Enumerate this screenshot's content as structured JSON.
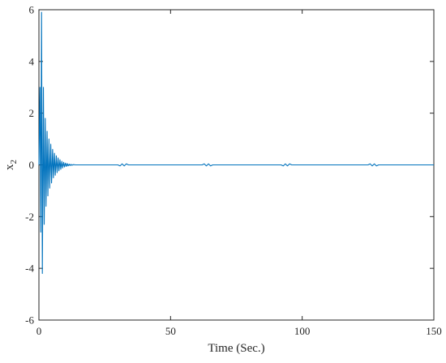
{
  "chart_data": {
    "type": "line",
    "title": "",
    "xlabel": "Time (Sec.)",
    "ylabel": "x",
    "ylabel_subscript": "2",
    "xlim": [
      0,
      150
    ],
    "ylim": [
      -6,
      6
    ],
    "xticks": [
      0,
      50,
      100,
      150
    ],
    "yticks": [
      -6,
      -4,
      -2,
      0,
      2,
      4,
      6
    ],
    "xtick_labels": [
      "0",
      "50",
      "100",
      "150"
    ],
    "ytick_labels": [
      "-6",
      "-4",
      "-2",
      "0",
      "2",
      "4",
      "6"
    ],
    "grid": false,
    "box": true,
    "line_color": "#0072BD",
    "series": [
      {
        "x": [
          0,
          0.4,
          0.7,
          1.0,
          1.3,
          1.7,
          2.0,
          2.4,
          2.7,
          3.1,
          3.4,
          3.8,
          4.1,
          4.5,
          4.8,
          5.2,
          5.5,
          5.9,
          6.2,
          6.6,
          6.9,
          7.3,
          7.6,
          8.0,
          8.3,
          8.7,
          9.0,
          9.4,
          9.7,
          10.1,
          10.4,
          10.8,
          11.1,
          11.5,
          11.8,
          12.2,
          12.5,
          13.0,
          14.0,
          16.0,
          20.0,
          28.0,
          30.0,
          30.8,
          31.6,
          32.4,
          33.2,
          34.0,
          36.0,
          50.0,
          62.0,
          62.8,
          63.6,
          64.4,
          65.2,
          66.0,
          68.0,
          80.0,
          92.0,
          92.8,
          93.6,
          94.4,
          95.2,
          96.0,
          98.0,
          110.0,
          125.0,
          125.8,
          126.6,
          127.4,
          128.2,
          129.0,
          131.0,
          140.0,
          150.0
        ],
        "y": [
          0,
          3.0,
          -2.6,
          5.9,
          -4.2,
          3.0,
          -2.3,
          1.8,
          -1.6,
          1.3,
          -1.2,
          1.0,
          -0.9,
          0.8,
          -0.7,
          0.6,
          -0.5,
          0.45,
          -0.4,
          0.35,
          -0.3,
          0.27,
          -0.23,
          0.2,
          -0.17,
          0.14,
          -0.12,
          0.1,
          -0.08,
          0.07,
          -0.06,
          0.05,
          -0.04,
          0.03,
          -0.025,
          0.02,
          -0.015,
          0.01,
          0.0,
          0.0,
          0.0,
          0.0,
          0.0,
          -0.04,
          0.04,
          -0.04,
          0.04,
          0.0,
          0.0,
          0.0,
          0.0,
          0.04,
          -0.04,
          0.04,
          -0.04,
          0.0,
          0.0,
          0.0,
          0.0,
          -0.04,
          0.04,
          -0.04,
          0.04,
          0.0,
          0.0,
          0.0,
          0.0,
          0.04,
          -0.04,
          0.04,
          -0.04,
          0.0,
          0.0,
          0.0,
          0.0
        ]
      }
    ]
  }
}
